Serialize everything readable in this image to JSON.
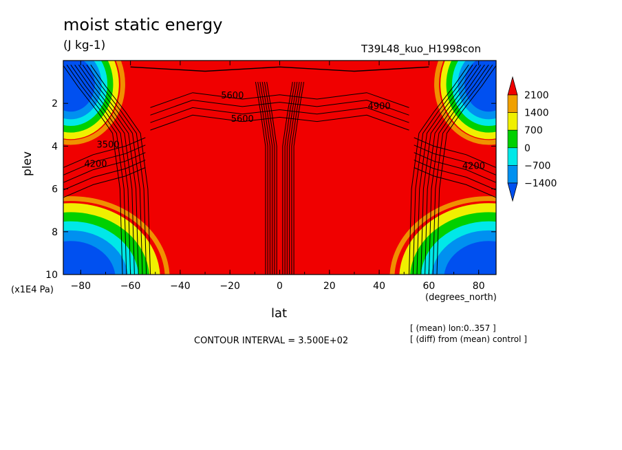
{
  "header": {
    "title": "moist static energy",
    "units": "(J kg-1)",
    "run": "T39L48_kuo_H1998con"
  },
  "footer": {
    "interval": "CONTOUR INTERVAL = 3.500E+02",
    "note_mean": "[ (mean) lon:0..357 ]",
    "note_diff": "[ (diff) from (mean) control ]"
  },
  "chart_data": {
    "type": "heatmap",
    "title": "moist static energy",
    "subtitle": "(J kg-1)",
    "xlabel": "lat",
    "x_unit": "(degrees_north)",
    "ylabel": "plev",
    "y_unit": "(x1E4 Pa)",
    "xlim": [
      -87,
      87
    ],
    "ylim": [
      10,
      0
    ],
    "x_ticks": [
      -80,
      -60,
      -40,
      -20,
      0,
      20,
      40,
      60,
      80
    ],
    "x_tick_labels": [
      "-80",
      "-60",
      "-40",
      "-20",
      "0",
      "20",
      "40",
      "60",
      "80"
    ],
    "y_ticks": [
      2,
      4,
      6,
      8,
      10
    ],
    "y_tick_labels": [
      "2",
      "4",
      "6",
      "8",
      "10"
    ],
    "contour_interval": 350,
    "contour_labels": [
      {
        "text": "5600",
        "lat": -19,
        "plev": 1.6
      },
      {
        "text": "5600",
        "lat": -15,
        "plev": 2.7
      },
      {
        "text": "3500",
        "lat": -69,
        "plev": 3.9
      },
      {
        "text": "4200",
        "lat": -74,
        "plev": 4.8
      },
      {
        "text": "4200",
        "lat": 78,
        "plev": 4.9
      },
      {
        "text": "4900",
        "lat": 40,
        "plev": 2.1
      }
    ],
    "colorbar": {
      "levels": [
        "2100",
        "1400",
        "700",
        "0",
        "-700",
        "-1400"
      ],
      "colors": [
        "#f00000",
        "#f0a000",
        "#f0f000",
        "#00d000",
        "#00e8e8",
        "#0090f0",
        "#0050f0"
      ],
      "extend": "both"
    },
    "regions": {
      "background_color": "#f00000",
      "cold_color": "#0050f0"
    }
  }
}
